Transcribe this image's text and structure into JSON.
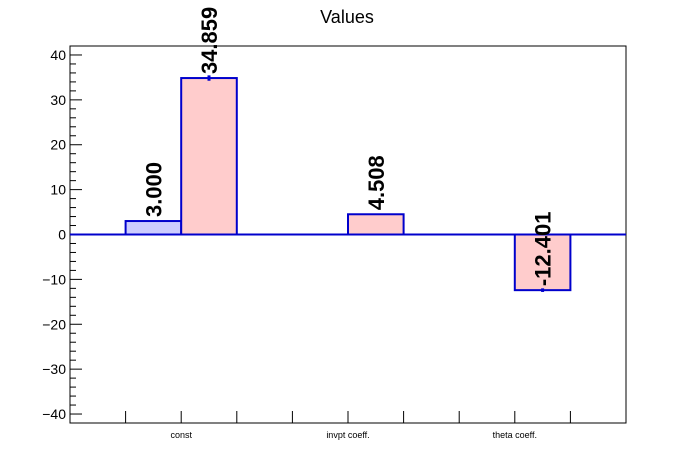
{
  "chart_data": {
    "type": "bar",
    "title": "Values",
    "xlabel": "",
    "ylabel": "",
    "ylim": [
      -42,
      42
    ],
    "yticks": [
      -40,
      -30,
      -20,
      -10,
      0,
      10,
      20,
      30,
      40
    ],
    "ytick_labels": [
      "−40",
      "−30",
      "−20",
      "−10",
      "0",
      "10",
      "20",
      "30",
      "40"
    ],
    "categories": [
      "const",
      "invpt coeff.",
      "theta coeff."
    ],
    "series": [
      {
        "values": [
          3.0,
          null,
          null
        ],
        "labels": [
          "3.000",
          "",
          ""
        ],
        "errors": [
          0,
          0,
          0
        ],
        "fill": "#ccccff",
        "stroke": "#0000cc"
      },
      {
        "values": [
          34.859,
          4.508,
          -12.401
        ],
        "labels": [
          "34.859",
          "4.508",
          "-12.401"
        ],
        "errors": [
          0.6,
          0.1,
          0.4
        ],
        "fill": "#ffcccc",
        "stroke": "#0000cc"
      }
    ],
    "grid": false,
    "legend": "none",
    "zero_line_color": "#0000cc"
  }
}
